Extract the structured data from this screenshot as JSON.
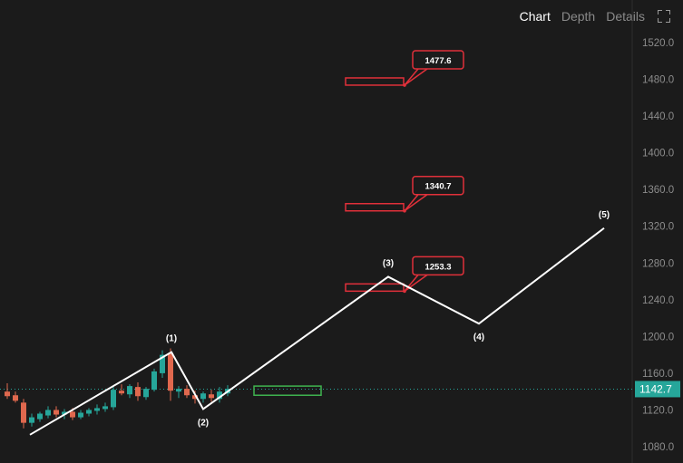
{
  "tabs": [
    {
      "label": "Chart",
      "active": true
    },
    {
      "label": "Depth",
      "active": false
    },
    {
      "label": "Details",
      "active": false
    }
  ],
  "fullscreen_icon": "fullscreen-icon",
  "colors": {
    "up": "#26a69a",
    "down": "#e0684e",
    "wave": "#ffffff",
    "target": "#e0303a",
    "entry": "#3fb34f",
    "price": "#26a69a"
  },
  "chart_data": {
    "type": "candlestick",
    "y_ticks": [
      1080,
      1120,
      1160,
      1200,
      1240,
      1280,
      1320,
      1360,
      1400,
      1440,
      1480,
      1520
    ],
    "ylim": [
      1065,
      1530
    ],
    "grid": false,
    "current_price": 1142.7,
    "current_price_label": "1142.7",
    "candles": [
      {
        "o": 1140,
        "h": 1149,
        "l": 1132,
        "c": 1135
      },
      {
        "o": 1136,
        "h": 1140,
        "l": 1128,
        "c": 1130
      },
      {
        "o": 1128,
        "h": 1132,
        "l": 1100,
        "c": 1106
      },
      {
        "o": 1106,
        "h": 1116,
        "l": 1102,
        "c": 1112
      },
      {
        "o": 1110,
        "h": 1118,
        "l": 1107,
        "c": 1116
      },
      {
        "o": 1114,
        "h": 1124,
        "l": 1111,
        "c": 1120
      },
      {
        "o": 1120,
        "h": 1124,
        "l": 1112,
        "c": 1115
      },
      {
        "o": 1115,
        "h": 1121,
        "l": 1110,
        "c": 1118
      },
      {
        "o": 1118,
        "h": 1122,
        "l": 1109,
        "c": 1112
      },
      {
        "o": 1112,
        "h": 1120,
        "l": 1110,
        "c": 1117
      },
      {
        "o": 1116,
        "h": 1122,
        "l": 1113,
        "c": 1120
      },
      {
        "o": 1119,
        "h": 1126,
        "l": 1115,
        "c": 1122
      },
      {
        "o": 1121,
        "h": 1128,
        "l": 1118,
        "c": 1124
      },
      {
        "o": 1123,
        "h": 1145,
        "l": 1120,
        "c": 1142
      },
      {
        "o": 1141,
        "h": 1148,
        "l": 1136,
        "c": 1138
      },
      {
        "o": 1137,
        "h": 1148,
        "l": 1133,
        "c": 1146
      },
      {
        "o": 1145,
        "h": 1150,
        "l": 1130,
        "c": 1135
      },
      {
        "o": 1134,
        "h": 1145,
        "l": 1131,
        "c": 1143
      },
      {
        "o": 1142,
        "h": 1165,
        "l": 1140,
        "c": 1162
      },
      {
        "o": 1160,
        "h": 1185,
        "l": 1155,
        "c": 1180
      },
      {
        "o": 1182,
        "h": 1187,
        "l": 1130,
        "c": 1141
      },
      {
        "o": 1140,
        "h": 1146,
        "l": 1133,
        "c": 1143
      },
      {
        "o": 1143,
        "h": 1147,
        "l": 1133,
        "c": 1136
      },
      {
        "o": 1136,
        "h": 1141,
        "l": 1127,
        "c": 1132
      },
      {
        "o": 1132,
        "h": 1140,
        "l": 1128,
        "c": 1138
      },
      {
        "o": 1137,
        "h": 1142,
        "l": 1129,
        "c": 1133
      },
      {
        "o": 1132,
        "h": 1145,
        "l": 1128,
        "c": 1140
      },
      {
        "o": 1138,
        "h": 1147,
        "l": 1135,
        "c": 1143
      }
    ],
    "waves": [
      {
        "label": "(1)",
        "price": 1183
      },
      {
        "label": "(2)",
        "price": 1121
      },
      {
        "label": "(3)",
        "price": 1265
      },
      {
        "label": "(4)",
        "price": 1214
      },
      {
        "label": "(5)",
        "price": 1318
      }
    ],
    "wave_start_price": 1093,
    "targets": [
      {
        "label": "1253.3",
        "value": 1253.3
      },
      {
        "label": "1340.7",
        "value": 1340.7
      },
      {
        "label": "1477.6",
        "value": 1477.6
      }
    ],
    "entry_zone": {
      "low": 1136,
      "high": 1146
    }
  }
}
